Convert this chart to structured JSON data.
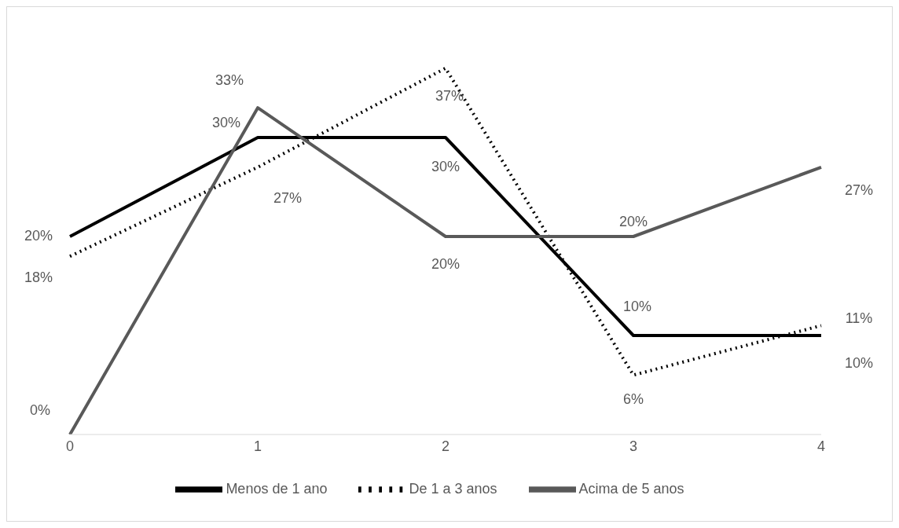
{
  "chart_data": {
    "type": "line",
    "categories": [
      "0",
      "1",
      "2",
      "3",
      "4"
    ],
    "series": [
      {
        "name": "Menos de 1 ano",
        "color": "#000000",
        "line_style": "solid",
        "values": [
          20,
          30,
          30,
          10,
          10
        ],
        "value_labels": [
          "20%",
          "30%",
          "30%",
          "10%",
          "10%"
        ]
      },
      {
        "name": "De 1 a 3 anos",
        "color": "#000000",
        "line_style": "dotted",
        "values": [
          18,
          27,
          37,
          6,
          11
        ],
        "value_labels": [
          "18%",
          "27%",
          "37%",
          "6%",
          "11%"
        ]
      },
      {
        "name": "Acima de 5 anos",
        "color": "#595959",
        "line_style": "solid",
        "values": [
          0,
          33,
          20,
          20,
          27
        ],
        "value_labels": [
          "0%",
          "33%",
          "20%",
          "20%",
          "27%"
        ]
      }
    ],
    "legend": "bottom",
    "grid": false,
    "marker": "none"
  }
}
